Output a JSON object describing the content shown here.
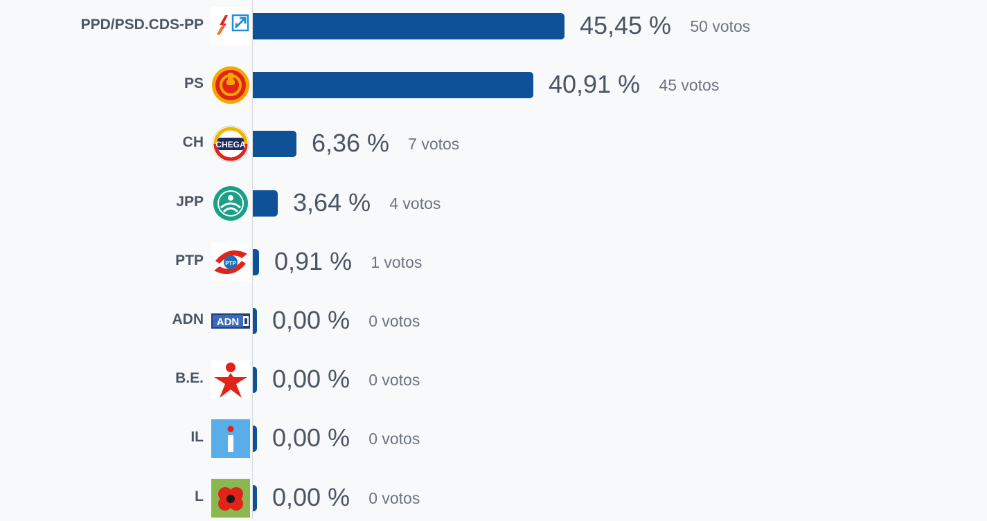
{
  "chart_data": {
    "type": "bar",
    "orientation": "horizontal",
    "categories": [
      "PPD/PSD.CDS-PP",
      "PS",
      "CH",
      "JPP",
      "PTP",
      "ADN",
      "B.E.",
      "IL",
      "L"
    ],
    "values": [
      45.45,
      40.91,
      6.36,
      3.64,
      0.91,
      0.0,
      0.0,
      0.0,
      0.0
    ],
    "value_labels": [
      "45,45 %",
      "40,91 %",
      "6,36 %",
      "3,64 %",
      "0,91 %",
      "0,00 %",
      "0,00 %",
      "0,00 %",
      "0,00 %"
    ],
    "votes": [
      50,
      45,
      7,
      4,
      1,
      0,
      0,
      0,
      0
    ],
    "vote_labels": [
      "50 votos",
      "45 votos",
      "7 votos",
      "4 votos",
      "1 votos",
      "0 votos",
      "0 votos",
      "0 votos",
      "0 votos"
    ],
    "logos": [
      "psd-cds-logo-icon",
      "ps-fist-logo-icon",
      "chega-logo-icon",
      "jpp-logo-icon",
      "ptp-logo-icon",
      "adn-logo-icon",
      "be-star-logo-icon",
      "il-logo-icon",
      "livre-poppy-logo-icon"
    ],
    "xlim": [
      0,
      100
    ],
    "bar_color": "#0f5196",
    "grid": false
  }
}
